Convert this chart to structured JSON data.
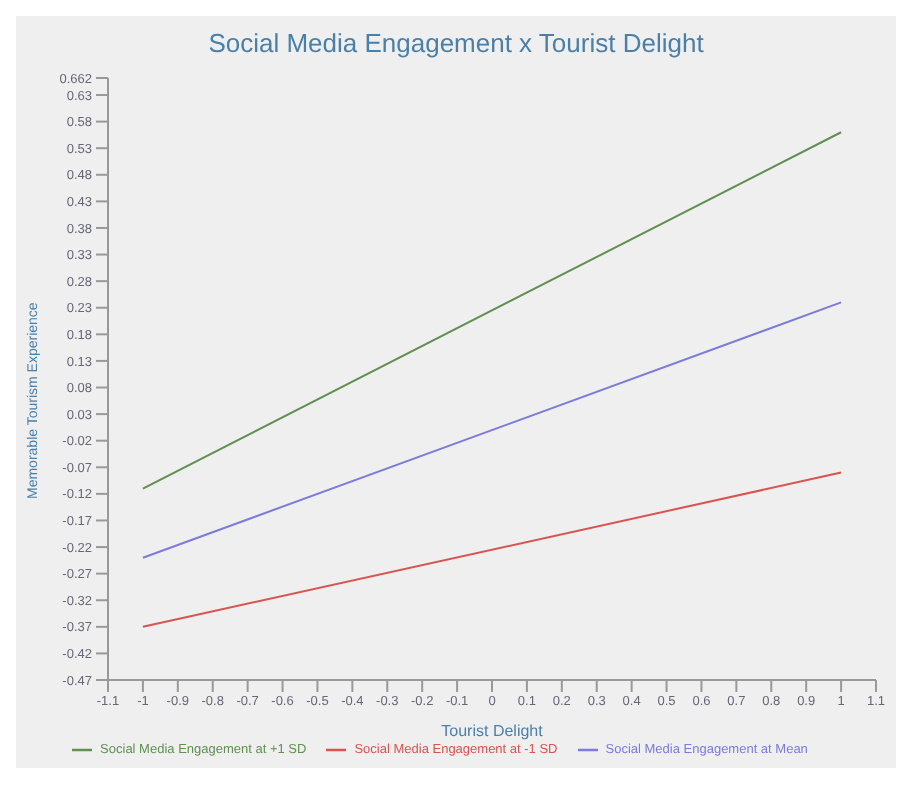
{
  "chart_data": {
    "type": "line",
    "title": "Social Media Engagement x Tourist Delight",
    "xlabel": "Tourist Delight",
    "ylabel": "Memorable Tourism Experience",
    "x": [
      -1,
      1
    ],
    "series": [
      {
        "name": "Social Media Engagement at -1 SD",
        "color": "#d9534f",
        "values": [
          -0.37,
          -0.08
        ]
      },
      {
        "name": "Social Media Engagement at Mean",
        "color": "#7b7bdb",
        "values": [
          -0.24,
          0.24
        ]
      },
      {
        "name": "Social Media Engagement at +1 SD",
        "color": "#5f9050",
        "values": [
          -0.11,
          0.56
        ]
      }
    ],
    "xlim": [
      -1.1,
      1.1
    ],
    "xticks": [
      -1.1,
      -1,
      -0.9,
      -0.8,
      -0.7,
      -0.6,
      -0.5,
      -0.4,
      -0.3,
      -0.2,
      -0.1,
      0,
      0.1,
      0.2,
      0.3,
      0.4,
      0.5,
      0.6,
      0.7,
      0.8,
      0.9,
      1,
      1.1
    ],
    "ylim": [
      -0.47,
      0.662
    ],
    "yticks": [
      -0.47,
      -0.42,
      -0.37,
      -0.32,
      -0.27,
      -0.22,
      -0.17,
      -0.12,
      -0.07,
      -0.02,
      0.03,
      0.08,
      0.13,
      0.18,
      0.23,
      0.28,
      0.33,
      0.38,
      0.43,
      0.48,
      0.53,
      0.58,
      0.63,
      0.662
    ],
    "grid": false,
    "legend": "bottom",
    "marker": "none",
    "line_style": "solid"
  }
}
